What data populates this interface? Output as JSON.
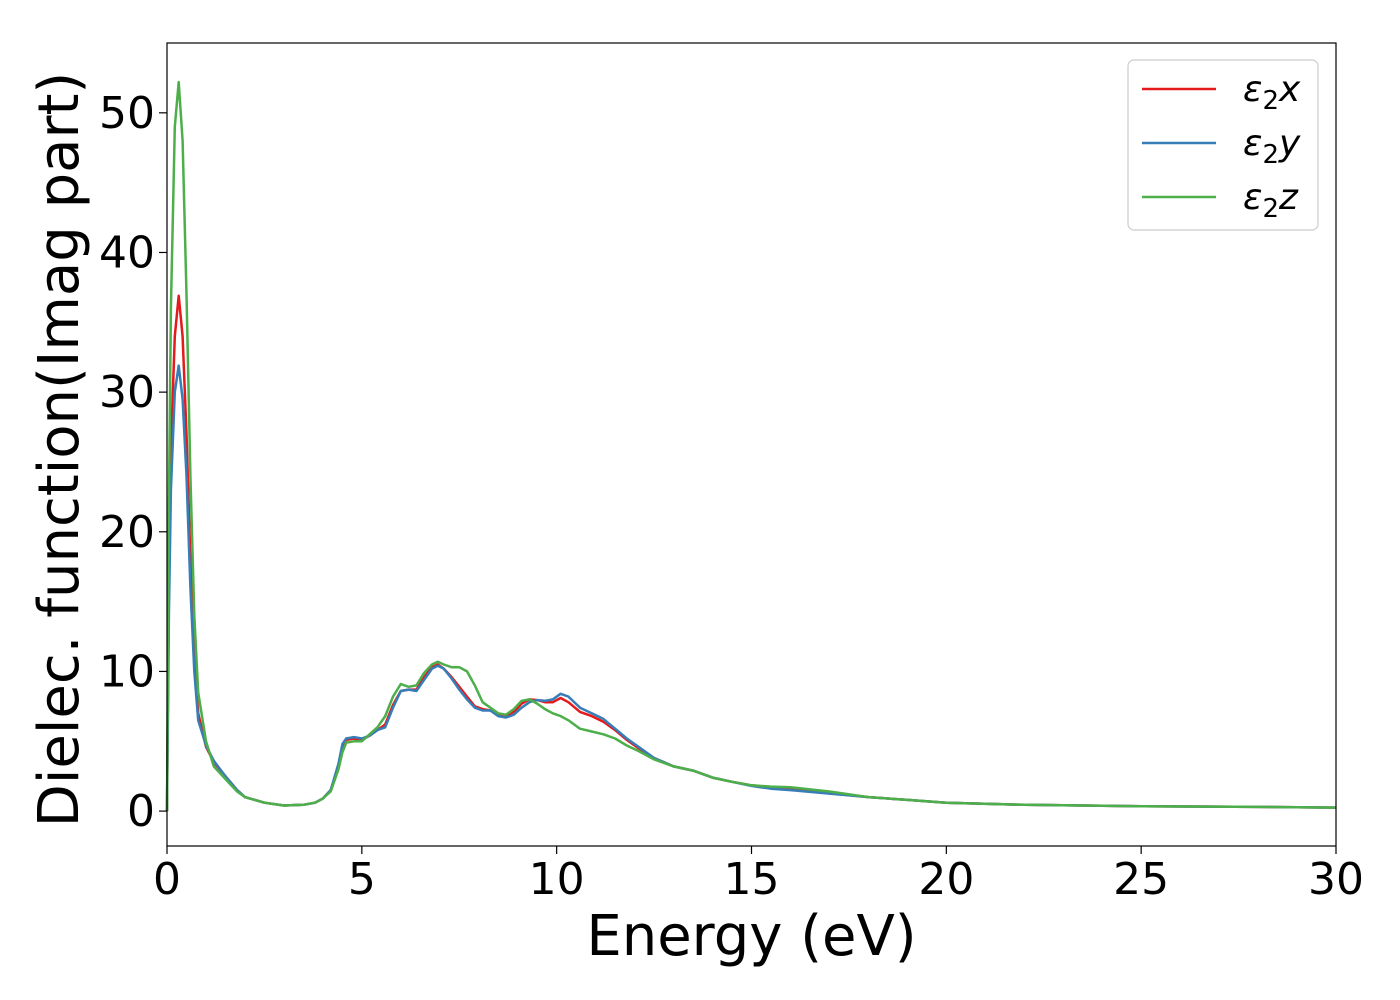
{
  "chart_data": {
    "type": "line",
    "title": "",
    "xlabel": "Energy (eV)",
    "ylabel": "Dielec. function(Imag part)",
    "xlim": [
      0,
      30
    ],
    "ylim": [
      -2.5,
      55
    ],
    "xticks": [
      "0",
      "5",
      "10",
      "15",
      "20",
      "25",
      "30"
    ],
    "yticks": [
      "0",
      "10",
      "20",
      "30",
      "40",
      "50"
    ],
    "grid": false,
    "legend_position": "top-right",
    "series": [
      {
        "name": "ε₂x",
        "legend_base": "ε",
        "legend_sub": "2",
        "legend_suffix": "x",
        "color": "#e41a1c",
        "points": [
          [
            0,
            0
          ],
          [
            0.05,
            16
          ],
          [
            0.1,
            26
          ],
          [
            0.2,
            34
          ],
          [
            0.3,
            36.9
          ],
          [
            0.4,
            34
          ],
          [
            0.5,
            27
          ],
          [
            0.6,
            18
          ],
          [
            0.7,
            11
          ],
          [
            0.8,
            7
          ],
          [
            1.0,
            4.6
          ],
          [
            1.2,
            3.5
          ],
          [
            1.5,
            2.5
          ],
          [
            1.8,
            1.5
          ],
          [
            2.0,
            1.0
          ],
          [
            2.5,
            0.6
          ],
          [
            3.0,
            0.4
          ],
          [
            3.5,
            0.45
          ],
          [
            3.8,
            0.6
          ],
          [
            4.0,
            0.9
          ],
          [
            4.2,
            1.5
          ],
          [
            4.4,
            3.2
          ],
          [
            4.5,
            4.6
          ],
          [
            4.6,
            5.1
          ],
          [
            4.8,
            5.2
          ],
          [
            5.0,
            5.1
          ],
          [
            5.2,
            5.4
          ],
          [
            5.4,
            5.8
          ],
          [
            5.6,
            6.2
          ],
          [
            5.8,
            7.6
          ],
          [
            6.0,
            8.6
          ],
          [
            6.2,
            8.7
          ],
          [
            6.4,
            8.7
          ],
          [
            6.6,
            9.6
          ],
          [
            6.8,
            10.3
          ],
          [
            6.95,
            10.5
          ],
          [
            7.1,
            10.2
          ],
          [
            7.3,
            9.6
          ],
          [
            7.5,
            8.9
          ],
          [
            7.7,
            8.2
          ],
          [
            7.9,
            7.5
          ],
          [
            8.1,
            7.3
          ],
          [
            8.3,
            7.2
          ],
          [
            8.5,
            6.9
          ],
          [
            8.7,
            6.8
          ],
          [
            8.9,
            7.1
          ],
          [
            9.1,
            7.7
          ],
          [
            9.3,
            8.0
          ],
          [
            9.5,
            7.95
          ],
          [
            9.7,
            7.8
          ],
          [
            9.9,
            7.8
          ],
          [
            10.1,
            8.1
          ],
          [
            10.3,
            7.8
          ],
          [
            10.6,
            7.1
          ],
          [
            10.9,
            6.8
          ],
          [
            11.2,
            6.4
          ],
          [
            11.5,
            5.8
          ],
          [
            11.8,
            5.1
          ],
          [
            12.1,
            4.5
          ],
          [
            12.5,
            3.8
          ],
          [
            13.0,
            3.2
          ],
          [
            13.5,
            2.9
          ],
          [
            14.0,
            2.4
          ],
          [
            14.5,
            2.1
          ],
          [
            15,
            1.85
          ],
          [
            15.5,
            1.7
          ],
          [
            16,
            1.55
          ],
          [
            17,
            1.3
          ],
          [
            18,
            1.0
          ],
          [
            19,
            0.8
          ],
          [
            20,
            0.6
          ],
          [
            22,
            0.45
          ],
          [
            25,
            0.35
          ],
          [
            28,
            0.3
          ],
          [
            30,
            0.25
          ]
        ]
      },
      {
        "name": "ε₂y",
        "legend_base": "ε",
        "legend_sub": "2",
        "legend_suffix": "y",
        "color": "#377eb8",
        "points": [
          [
            0,
            0
          ],
          [
            0.05,
            14
          ],
          [
            0.1,
            23
          ],
          [
            0.2,
            30
          ],
          [
            0.3,
            31.9
          ],
          [
            0.4,
            29.5
          ],
          [
            0.5,
            24
          ],
          [
            0.6,
            16
          ],
          [
            0.7,
            10
          ],
          [
            0.8,
            6.5
          ],
          [
            1.0,
            4.7
          ],
          [
            1.2,
            3.6
          ],
          [
            1.5,
            2.5
          ],
          [
            1.8,
            1.5
          ],
          [
            2.0,
            1.0
          ],
          [
            2.5,
            0.6
          ],
          [
            3.0,
            0.4
          ],
          [
            3.5,
            0.45
          ],
          [
            3.8,
            0.6
          ],
          [
            4.0,
            0.9
          ],
          [
            4.2,
            1.5
          ],
          [
            4.4,
            3.4
          ],
          [
            4.5,
            4.8
          ],
          [
            4.6,
            5.2
          ],
          [
            4.8,
            5.3
          ],
          [
            5.0,
            5.2
          ],
          [
            5.2,
            5.4
          ],
          [
            5.4,
            5.8
          ],
          [
            5.6,
            6.0
          ],
          [
            5.8,
            7.4
          ],
          [
            6.0,
            8.6
          ],
          [
            6.2,
            8.7
          ],
          [
            6.4,
            8.6
          ],
          [
            6.6,
            9.4
          ],
          [
            6.8,
            10.2
          ],
          [
            6.95,
            10.4
          ],
          [
            7.1,
            10.2
          ],
          [
            7.3,
            9.5
          ],
          [
            7.5,
            8.7
          ],
          [
            7.7,
            8.0
          ],
          [
            7.9,
            7.4
          ],
          [
            8.1,
            7.2
          ],
          [
            8.3,
            7.2
          ],
          [
            8.5,
            6.8
          ],
          [
            8.7,
            6.7
          ],
          [
            8.9,
            6.9
          ],
          [
            9.1,
            7.4
          ],
          [
            9.3,
            7.8
          ],
          [
            9.5,
            7.95
          ],
          [
            9.7,
            7.9
          ],
          [
            9.9,
            8.0
          ],
          [
            10.1,
            8.4
          ],
          [
            10.3,
            8.2
          ],
          [
            10.6,
            7.4
          ],
          [
            10.9,
            7.0
          ],
          [
            11.2,
            6.6
          ],
          [
            11.5,
            5.9
          ],
          [
            11.8,
            5.2
          ],
          [
            12.1,
            4.6
          ],
          [
            12.5,
            3.8
          ],
          [
            13.0,
            3.2
          ],
          [
            13.5,
            2.9
          ],
          [
            14.0,
            2.4
          ],
          [
            14.5,
            2.1
          ],
          [
            15,
            1.8
          ],
          [
            15.5,
            1.6
          ],
          [
            16,
            1.5
          ],
          [
            17,
            1.25
          ],
          [
            18,
            1.0
          ],
          [
            19,
            0.8
          ],
          [
            20,
            0.6
          ],
          [
            22,
            0.45
          ],
          [
            25,
            0.35
          ],
          [
            28,
            0.3
          ],
          [
            30,
            0.25
          ]
        ]
      },
      {
        "name": "ε₂z",
        "legend_base": "ε",
        "legend_sub": "2",
        "legend_suffix": "z",
        "color": "#4daf4a",
        "points": [
          [
            0,
            0
          ],
          [
            0.05,
            22
          ],
          [
            0.1,
            36
          ],
          [
            0.2,
            49
          ],
          [
            0.3,
            52.2
          ],
          [
            0.4,
            48
          ],
          [
            0.5,
            37
          ],
          [
            0.6,
            24
          ],
          [
            0.7,
            14
          ],
          [
            0.8,
            8.5
          ],
          [
            1.0,
            5
          ],
          [
            1.2,
            3.2
          ],
          [
            1.5,
            2.3
          ],
          [
            1.8,
            1.4
          ],
          [
            2.0,
            1.0
          ],
          [
            2.5,
            0.6
          ],
          [
            3.0,
            0.4
          ],
          [
            3.5,
            0.45
          ],
          [
            3.8,
            0.6
          ],
          [
            4.0,
            0.9
          ],
          [
            4.2,
            1.4
          ],
          [
            4.4,
            3.0
          ],
          [
            4.5,
            4.2
          ],
          [
            4.6,
            4.9
          ],
          [
            4.8,
            5.0
          ],
          [
            5.0,
            5.0
          ],
          [
            5.2,
            5.5
          ],
          [
            5.4,
            6.0
          ],
          [
            5.6,
            6.8
          ],
          [
            5.8,
            8.2
          ],
          [
            6.0,
            9.1
          ],
          [
            6.2,
            8.9
          ],
          [
            6.4,
            9.0
          ],
          [
            6.6,
            9.9
          ],
          [
            6.8,
            10.5
          ],
          [
            6.95,
            10.7
          ],
          [
            7.1,
            10.5
          ],
          [
            7.3,
            10.3
          ],
          [
            7.5,
            10.3
          ],
          [
            7.7,
            10.0
          ],
          [
            7.9,
            9.0
          ],
          [
            8.1,
            7.8
          ],
          [
            8.3,
            7.4
          ],
          [
            8.5,
            7.0
          ],
          [
            8.7,
            6.9
          ],
          [
            8.9,
            7.3
          ],
          [
            9.1,
            7.9
          ],
          [
            9.3,
            8.0
          ],
          [
            9.5,
            7.7
          ],
          [
            9.7,
            7.3
          ],
          [
            9.9,
            7.0
          ],
          [
            10.1,
            6.8
          ],
          [
            10.3,
            6.5
          ],
          [
            10.6,
            5.9
          ],
          [
            10.9,
            5.7
          ],
          [
            11.2,
            5.5
          ],
          [
            11.5,
            5.2
          ],
          [
            11.8,
            4.7
          ],
          [
            12.1,
            4.3
          ],
          [
            12.5,
            3.7
          ],
          [
            13.0,
            3.2
          ],
          [
            13.5,
            2.9
          ],
          [
            14.0,
            2.4
          ],
          [
            14.5,
            2.1
          ],
          [
            15,
            1.85
          ],
          [
            15.5,
            1.75
          ],
          [
            16,
            1.7
          ],
          [
            17,
            1.4
          ],
          [
            18,
            1.0
          ],
          [
            19,
            0.8
          ],
          [
            20,
            0.6
          ],
          [
            22,
            0.45
          ],
          [
            25,
            0.35
          ],
          [
            28,
            0.3
          ],
          [
            30,
            0.25
          ]
        ]
      }
    ]
  }
}
